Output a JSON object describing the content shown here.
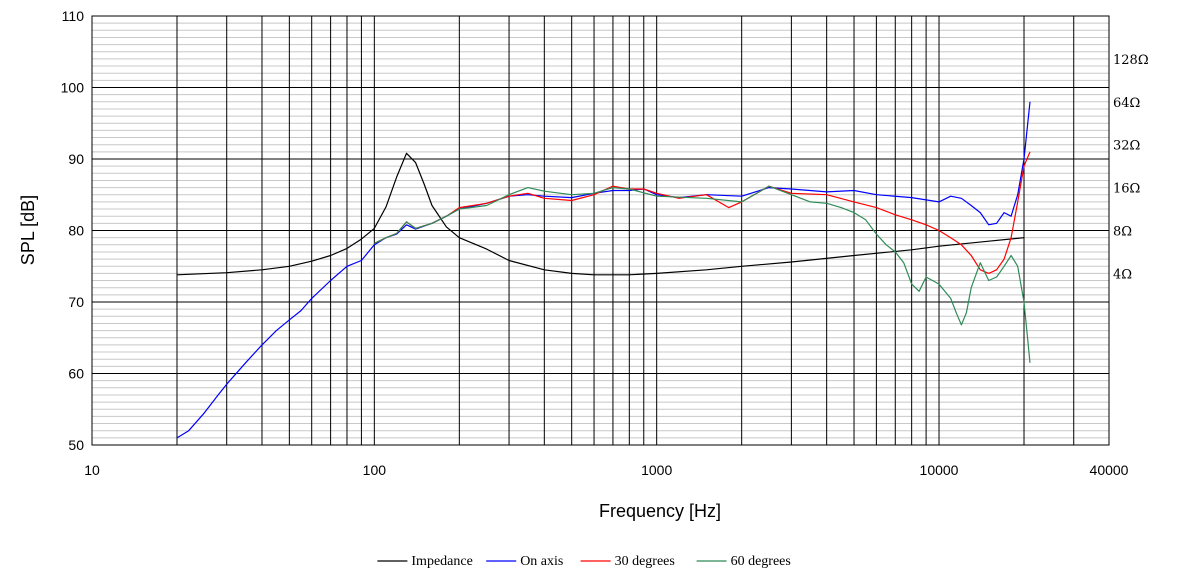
{
  "chart_data": {
    "type": "line",
    "xlabel": "Frequency [Hz]",
    "ylabel": "SPL [dB]",
    "xscale": "log",
    "xlim": [
      10,
      40000
    ],
    "ylim": [
      50,
      110
    ],
    "x_tick_labels": [
      {
        "value": 10,
        "label": "10"
      },
      {
        "value": 100,
        "label": "100"
      },
      {
        "value": 1000,
        "label": "1000"
      },
      {
        "value": 10000,
        "label": "10000"
      },
      {
        "value": 40000,
        "label": "40000"
      }
    ],
    "y_ticks": [
      50,
      60,
      70,
      80,
      90,
      100,
      110
    ],
    "y2_tick_labels": [
      {
        "y": 74,
        "label": "4Ω"
      },
      {
        "y": 80,
        "label": "8Ω"
      },
      {
        "y": 86,
        "label": "16Ω"
      },
      {
        "y": 92,
        "label": "32Ω"
      },
      {
        "y": 98,
        "label": "64Ω"
      },
      {
        "y": 104,
        "label": "128Ω"
      }
    ],
    "grid": true,
    "legend_position": "bottom-center",
    "series": [
      {
        "name": "Impedance",
        "color": "#000000",
        "points": [
          [
            20,
            73.8
          ],
          [
            30,
            74.1
          ],
          [
            40,
            74.5
          ],
          [
            50,
            75.0
          ],
          [
            60,
            75.7
          ],
          [
            70,
            76.5
          ],
          [
            80,
            77.5
          ],
          [
            90,
            78.8
          ],
          [
            100,
            80.3
          ],
          [
            110,
            83.3
          ],
          [
            120,
            87.5
          ],
          [
            130,
            90.8
          ],
          [
            140,
            89.5
          ],
          [
            150,
            86.5
          ],
          [
            160,
            83.5
          ],
          [
            180,
            80.5
          ],
          [
            200,
            79.0
          ],
          [
            250,
            77.4
          ],
          [
            300,
            75.8
          ],
          [
            400,
            74.5
          ],
          [
            500,
            74.0
          ],
          [
            600,
            73.8
          ],
          [
            800,
            73.8
          ],
          [
            1000,
            74.0
          ],
          [
            1500,
            74.5
          ],
          [
            2000,
            75.0
          ],
          [
            3000,
            75.6
          ],
          [
            5000,
            76.5
          ],
          [
            8000,
            77.3
          ],
          [
            10000,
            77.8
          ],
          [
            15000,
            78.5
          ],
          [
            20000,
            79.0
          ]
        ]
      },
      {
        "name": "On axis",
        "color": "#0000ff",
        "points": [
          [
            20,
            51.0
          ],
          [
            22,
            52.0
          ],
          [
            25,
            54.5
          ],
          [
            28,
            57.0
          ],
          [
            30,
            58.5
          ],
          [
            35,
            61.5
          ],
          [
            40,
            64.0
          ],
          [
            45,
            66.0
          ],
          [
            50,
            67.5
          ],
          [
            55,
            68.8
          ],
          [
            60,
            70.5
          ],
          [
            70,
            73.0
          ],
          [
            80,
            75.0
          ],
          [
            90,
            75.8
          ],
          [
            100,
            78.0
          ],
          [
            110,
            79.0
          ],
          [
            120,
            79.5
          ],
          [
            130,
            80.8
          ],
          [
            140,
            80.2
          ],
          [
            160,
            81.0
          ],
          [
            180,
            82.0
          ],
          [
            200,
            83.0
          ],
          [
            250,
            83.8
          ],
          [
            300,
            84.8
          ],
          [
            350,
            85.0
          ],
          [
            400,
            84.8
          ],
          [
            500,
            84.6
          ],
          [
            600,
            85.2
          ],
          [
            700,
            85.6
          ],
          [
            800,
            85.6
          ],
          [
            900,
            85.8
          ],
          [
            1000,
            85.0
          ],
          [
            1200,
            84.6
          ],
          [
            1500,
            85.0
          ],
          [
            2000,
            84.8
          ],
          [
            2500,
            86.0
          ],
          [
            3000,
            85.8
          ],
          [
            4000,
            85.4
          ],
          [
            5000,
            85.6
          ],
          [
            6000,
            85.0
          ],
          [
            8000,
            84.6
          ],
          [
            10000,
            84.0
          ],
          [
            11000,
            84.8
          ],
          [
            12000,
            84.5
          ],
          [
            13000,
            83.5
          ],
          [
            14000,
            82.5
          ],
          [
            15000,
            80.8
          ],
          [
            16000,
            81.0
          ],
          [
            17000,
            82.5
          ],
          [
            18000,
            82.0
          ],
          [
            19000,
            85.0
          ],
          [
            20000,
            90.0
          ],
          [
            21000,
            98.0
          ]
        ]
      },
      {
        "name": "30 degrees",
        "color": "#ff0000",
        "points": [
          [
            100,
            78.2
          ],
          [
            110,
            79.0
          ],
          [
            120,
            79.6
          ],
          [
            130,
            81.2
          ],
          [
            140,
            80.3
          ],
          [
            160,
            81.0
          ],
          [
            180,
            82.0
          ],
          [
            200,
            83.2
          ],
          [
            250,
            83.8
          ],
          [
            300,
            84.8
          ],
          [
            350,
            85.2
          ],
          [
            400,
            84.5
          ],
          [
            500,
            84.2
          ],
          [
            600,
            85.0
          ],
          [
            700,
            86.2
          ],
          [
            800,
            85.8
          ],
          [
            900,
            85.8
          ],
          [
            1000,
            85.2
          ],
          [
            1200,
            84.5
          ],
          [
            1500,
            85.0
          ],
          [
            1800,
            83.2
          ],
          [
            2000,
            84.0
          ],
          [
            2500,
            86.2
          ],
          [
            3000,
            85.2
          ],
          [
            4000,
            85.0
          ],
          [
            5000,
            84.0
          ],
          [
            6000,
            83.2
          ],
          [
            7000,
            82.2
          ],
          [
            8000,
            81.5
          ],
          [
            9000,
            80.8
          ],
          [
            10000,
            80.0
          ],
          [
            11000,
            79.0
          ],
          [
            12000,
            78.0
          ],
          [
            13000,
            76.5
          ],
          [
            14000,
            74.5
          ],
          [
            15000,
            74.0
          ],
          [
            16000,
            74.5
          ],
          [
            17000,
            76.0
          ],
          [
            18000,
            79.0
          ],
          [
            19000,
            84.0
          ],
          [
            20000,
            89.0
          ],
          [
            21000,
            91.0
          ]
        ]
      },
      {
        "name": "60 degrees",
        "color": "#2e8b57",
        "points": [
          [
            100,
            78.2
          ],
          [
            110,
            79.0
          ],
          [
            120,
            79.6
          ],
          [
            130,
            81.2
          ],
          [
            140,
            80.3
          ],
          [
            160,
            81.0
          ],
          [
            180,
            82.0
          ],
          [
            200,
            83.0
          ],
          [
            250,
            83.5
          ],
          [
            300,
            85.0
          ],
          [
            350,
            86.0
          ],
          [
            400,
            85.5
          ],
          [
            500,
            85.0
          ],
          [
            600,
            85.2
          ],
          [
            700,
            86.0
          ],
          [
            800,
            85.8
          ],
          [
            1000,
            84.8
          ],
          [
            1500,
            84.5
          ],
          [
            2000,
            84.0
          ],
          [
            2500,
            86.2
          ],
          [
            3000,
            85.0
          ],
          [
            3500,
            84.0
          ],
          [
            4000,
            83.8
          ],
          [
            4500,
            83.2
          ],
          [
            5000,
            82.5
          ],
          [
            5500,
            81.5
          ],
          [
            6000,
            79.5
          ],
          [
            6500,
            78.0
          ],
          [
            7000,
            77.0
          ],
          [
            7500,
            75.5
          ],
          [
            8000,
            72.5
          ],
          [
            8500,
            71.5
          ],
          [
            9000,
            73.5
          ],
          [
            10000,
            72.5
          ],
          [
            11000,
            70.5
          ],
          [
            11500,
            68.5
          ],
          [
            12000,
            66.8
          ],
          [
            12500,
            68.5
          ],
          [
            13000,
            72.0
          ],
          [
            14000,
            75.5
          ],
          [
            15000,
            73.0
          ],
          [
            16000,
            73.5
          ],
          [
            17000,
            75.0
          ],
          [
            18000,
            76.5
          ],
          [
            19000,
            75.0
          ],
          [
            20000,
            70.0
          ],
          [
            21000,
            61.5
          ]
        ]
      }
    ]
  }
}
